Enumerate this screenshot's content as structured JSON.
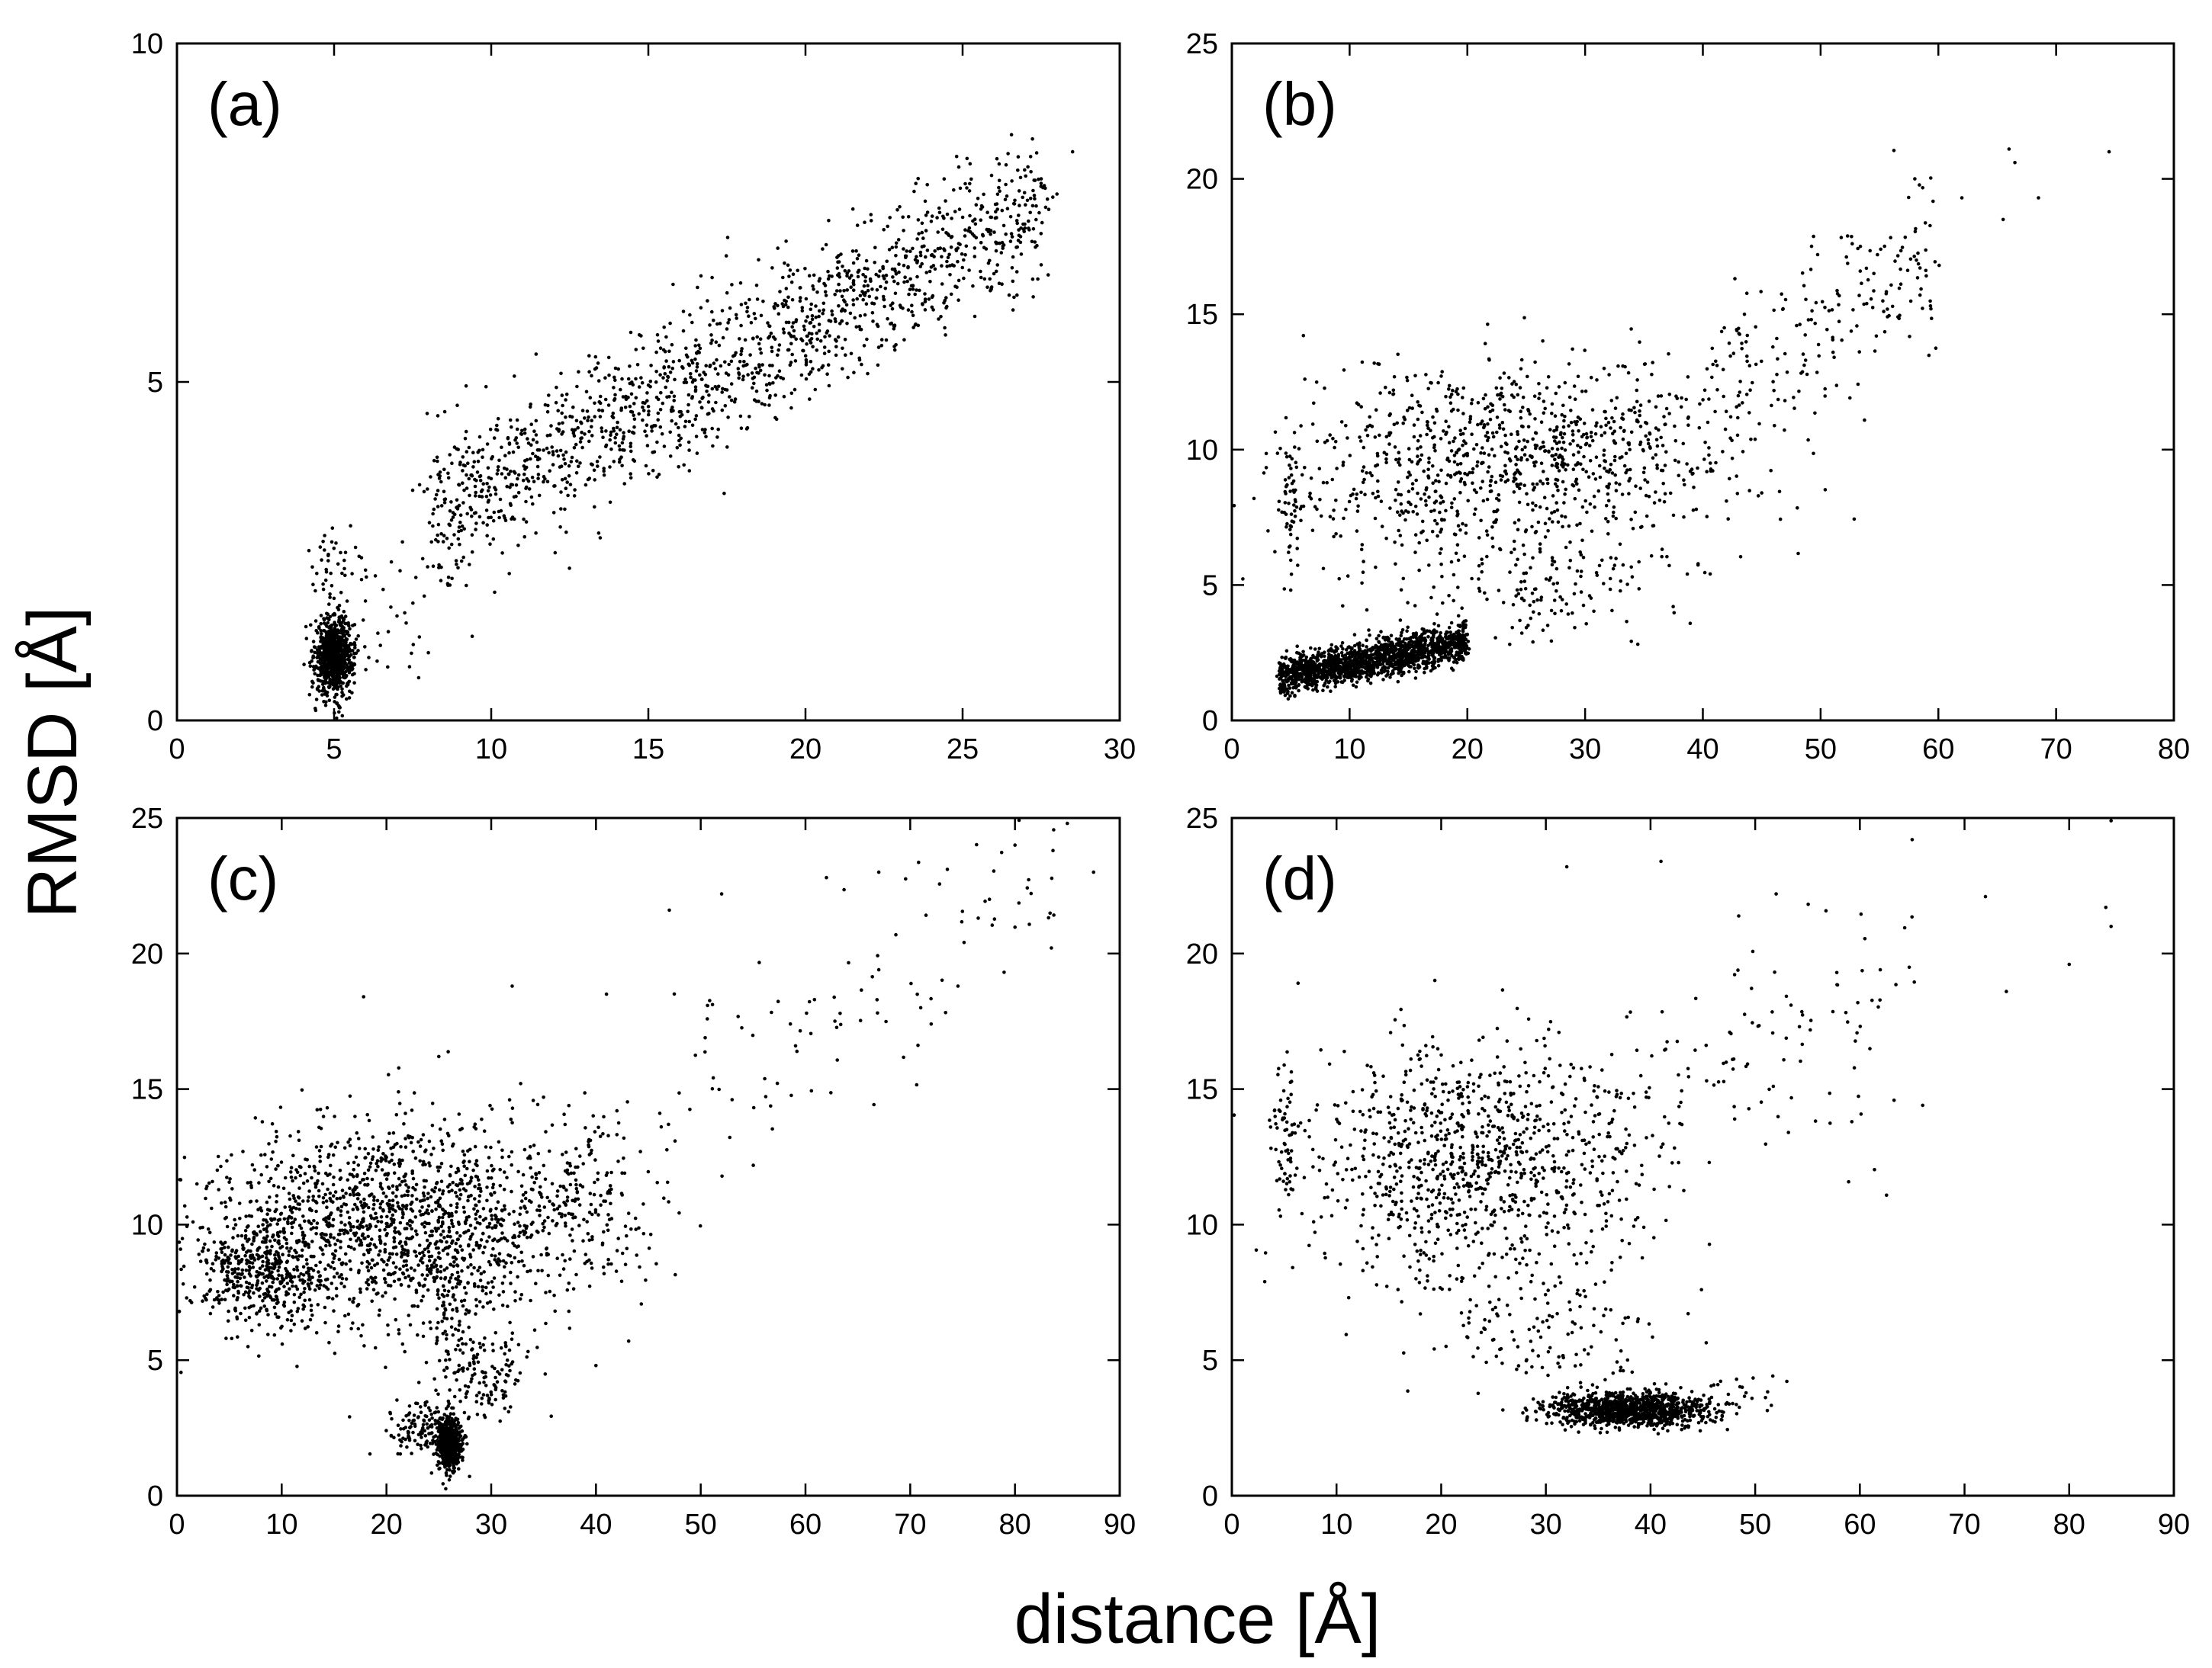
{
  "figure": {
    "xlabel": "distance [Å]",
    "ylabel": "RMSD [Å]"
  },
  "chart_data": [
    {
      "type": "scatter",
      "panel_label": "(a)",
      "xlim": [
        0,
        30
      ],
      "ylim": [
        0,
        10
      ],
      "xticks": [
        0,
        5,
        10,
        15,
        20,
        25,
        30
      ],
      "yticks": [
        0,
        5,
        10
      ],
      "grid": false,
      "marker_color": "#000000",
      "clusters": [
        {
          "cx": 5.0,
          "cy": 0.95,
          "sx": 0.3,
          "sy": 0.28,
          "n": 850
        },
        {
          "cx": 5.0,
          "cy": 2.3,
          "sx": 0.35,
          "sy": 0.45,
          "n": 40
        },
        {
          "line_from": [
            8.0,
            3.0
          ],
          "line_to": [
            27.5,
            7.6
          ],
          "width": 0.55,
          "n": 1500
        },
        {
          "cx": 6.7,
          "cy": 1.5,
          "sx": 1.0,
          "sy": 0.6,
          "n": 40
        }
      ],
      "points": [
        [
          28.5,
          8.4
        ],
        [
          27.5,
          8.0
        ],
        [
          27.6,
          7.9
        ],
        [
          27.7,
          7.7
        ],
        [
          8.0,
          1.0
        ],
        [
          8.3,
          4.5
        ],
        [
          7.5,
          3.4
        ]
      ]
    },
    {
      "type": "scatter",
      "panel_label": "(b)",
      "xlim": [
        0,
        80
      ],
      "ylim": [
        0,
        25
      ],
      "xticks": [
        0,
        10,
        20,
        30,
        40,
        50,
        60,
        70,
        80
      ],
      "yticks": [
        0,
        5,
        10,
        15,
        20,
        25
      ],
      "grid": false,
      "marker_color": "#000000",
      "clusters": [
        {
          "line_from": [
            4.0,
            1.6
          ],
          "line_to": [
            20.0,
            2.9
          ],
          "width": 0.35,
          "n": 1700
        },
        {
          "cx": 27.0,
          "cy": 10.0,
          "sx": 8.0,
          "sy": 1.7,
          "n": 700
        },
        {
          "cx": 15.0,
          "cy": 9.0,
          "sx": 6.0,
          "sy": 2.0,
          "n": 300
        },
        {
          "line_from": [
            40.0,
            12.0
          ],
          "line_to": [
            60.0,
            17.0
          ],
          "width": 1.6,
          "n": 200
        },
        {
          "cx": 27.0,
          "cy": 5.0,
          "sx": 6.0,
          "sy": 1.0,
          "n": 150
        },
        {
          "cx": 5.0,
          "cy": 8.0,
          "sx": 0.5,
          "sy": 1.5,
          "n": 50
        }
      ],
      "points": [
        [
          74.5,
          21.0
        ],
        [
          66.0,
          21.1
        ],
        [
          66.5,
          20.6
        ],
        [
          68.5,
          19.3
        ],
        [
          62.0,
          19.3
        ],
        [
          58.0,
          20.0
        ],
        [
          65.5,
          18.5
        ],
        [
          6.2,
          12.6
        ],
        [
          45.0,
          8.4
        ],
        [
          42.0,
          8.1
        ],
        [
          34.0,
          5.3
        ]
      ]
    },
    {
      "type": "scatter",
      "panel_label": "(c)",
      "xlim": [
        0,
        90
      ],
      "ylim": [
        0,
        25
      ],
      "xticks": [
        0,
        10,
        20,
        30,
        40,
        50,
        60,
        70,
        80,
        90
      ],
      "yticks": [
        0,
        5,
        10,
        15,
        20,
        25
      ],
      "grid": false,
      "marker_color": "#000000",
      "clusters": [
        {
          "cx": 26.0,
          "cy": 1.9,
          "sx": 0.6,
          "sy": 0.5,
          "n": 550
        },
        {
          "cx": 23.5,
          "cy": 2.5,
          "sx": 1.5,
          "sy": 0.5,
          "n": 120
        },
        {
          "cx": 20.0,
          "cy": 10.0,
          "sx": 9.0,
          "sy": 1.9,
          "n": 1500
        },
        {
          "cx": 8.0,
          "cy": 8.3,
          "sx": 3.0,
          "sy": 1.0,
          "n": 400
        },
        {
          "cx": 30.0,
          "cy": 4.3,
          "sx": 2.0,
          "sy": 0.8,
          "n": 100
        },
        {
          "cx": 38.0,
          "cy": 11.0,
          "sx": 4.0,
          "sy": 2.0,
          "n": 200
        },
        {
          "line_from": [
            45.0,
            14.0
          ],
          "line_to": [
            85.0,
            23.0
          ],
          "width": 2.0,
          "n": 100
        },
        {
          "cx": 26.5,
          "cy": 6.5,
          "sx": 1.5,
          "sy": 1.5,
          "n": 100
        }
      ],
      "points": [
        [
          85.0,
          24.8
        ],
        [
          80.0,
          24.0
        ],
        [
          87.5,
          23.0
        ],
        [
          62.0,
          22.8
        ],
        [
          67.0,
          23.0
        ],
        [
          52.0,
          22.2
        ],
        [
          47.0,
          21.6
        ],
        [
          72.0,
          17.4
        ],
        [
          71.0,
          18.0
        ],
        [
          67.0,
          19.4
        ],
        [
          25.0,
          16.2
        ],
        [
          32.0,
          18.8
        ],
        [
          41.0,
          18.5
        ],
        [
          40.0,
          4.8
        ]
      ]
    },
    {
      "type": "scatter",
      "panel_label": "(d)",
      "xlim": [
        0,
        90
      ],
      "ylim": [
        0,
        25
      ],
      "xticks": [
        0,
        10,
        20,
        30,
        40,
        50,
        60,
        70,
        80,
        90
      ],
      "yticks": [
        0,
        5,
        10,
        15,
        20,
        25
      ],
      "grid": false,
      "marker_color": "#000000",
      "clusters": [
        {
          "cx": 38.0,
          "cy": 3.2,
          "sx": 3.8,
          "sy": 0.32,
          "n": 1100
        },
        {
          "cx": 23.0,
          "cy": 12.3,
          "sx": 8.0,
          "sy": 2.2,
          "n": 1000
        },
        {
          "cx": 5.0,
          "cy": 13.0,
          "sx": 0.6,
          "sy": 1.3,
          "n": 60
        },
        {
          "cx": 30.0,
          "cy": 6.0,
          "sx": 6.0,
          "sy": 1.2,
          "n": 120
        },
        {
          "line_from": [
            35.0,
            13.0
          ],
          "line_to": [
            65.0,
            19.0
          ],
          "width": 2.5,
          "n": 120
        },
        {
          "cx": 49.0,
          "cy": 3.8,
          "sx": 2.0,
          "sy": 0.4,
          "n": 20
        }
      ],
      "points": [
        [
          84.0,
          24.9
        ],
        [
          83.5,
          21.7
        ],
        [
          84.0,
          21.0
        ],
        [
          65.0,
          24.2
        ],
        [
          72.0,
          22.1
        ],
        [
          41.0,
          23.4
        ],
        [
          32.0,
          23.2
        ],
        [
          80.0,
          19.6
        ],
        [
          74.0,
          18.6
        ],
        [
          66.0,
          14.4
        ],
        [
          52.0,
          22.2
        ]
      ]
    }
  ]
}
